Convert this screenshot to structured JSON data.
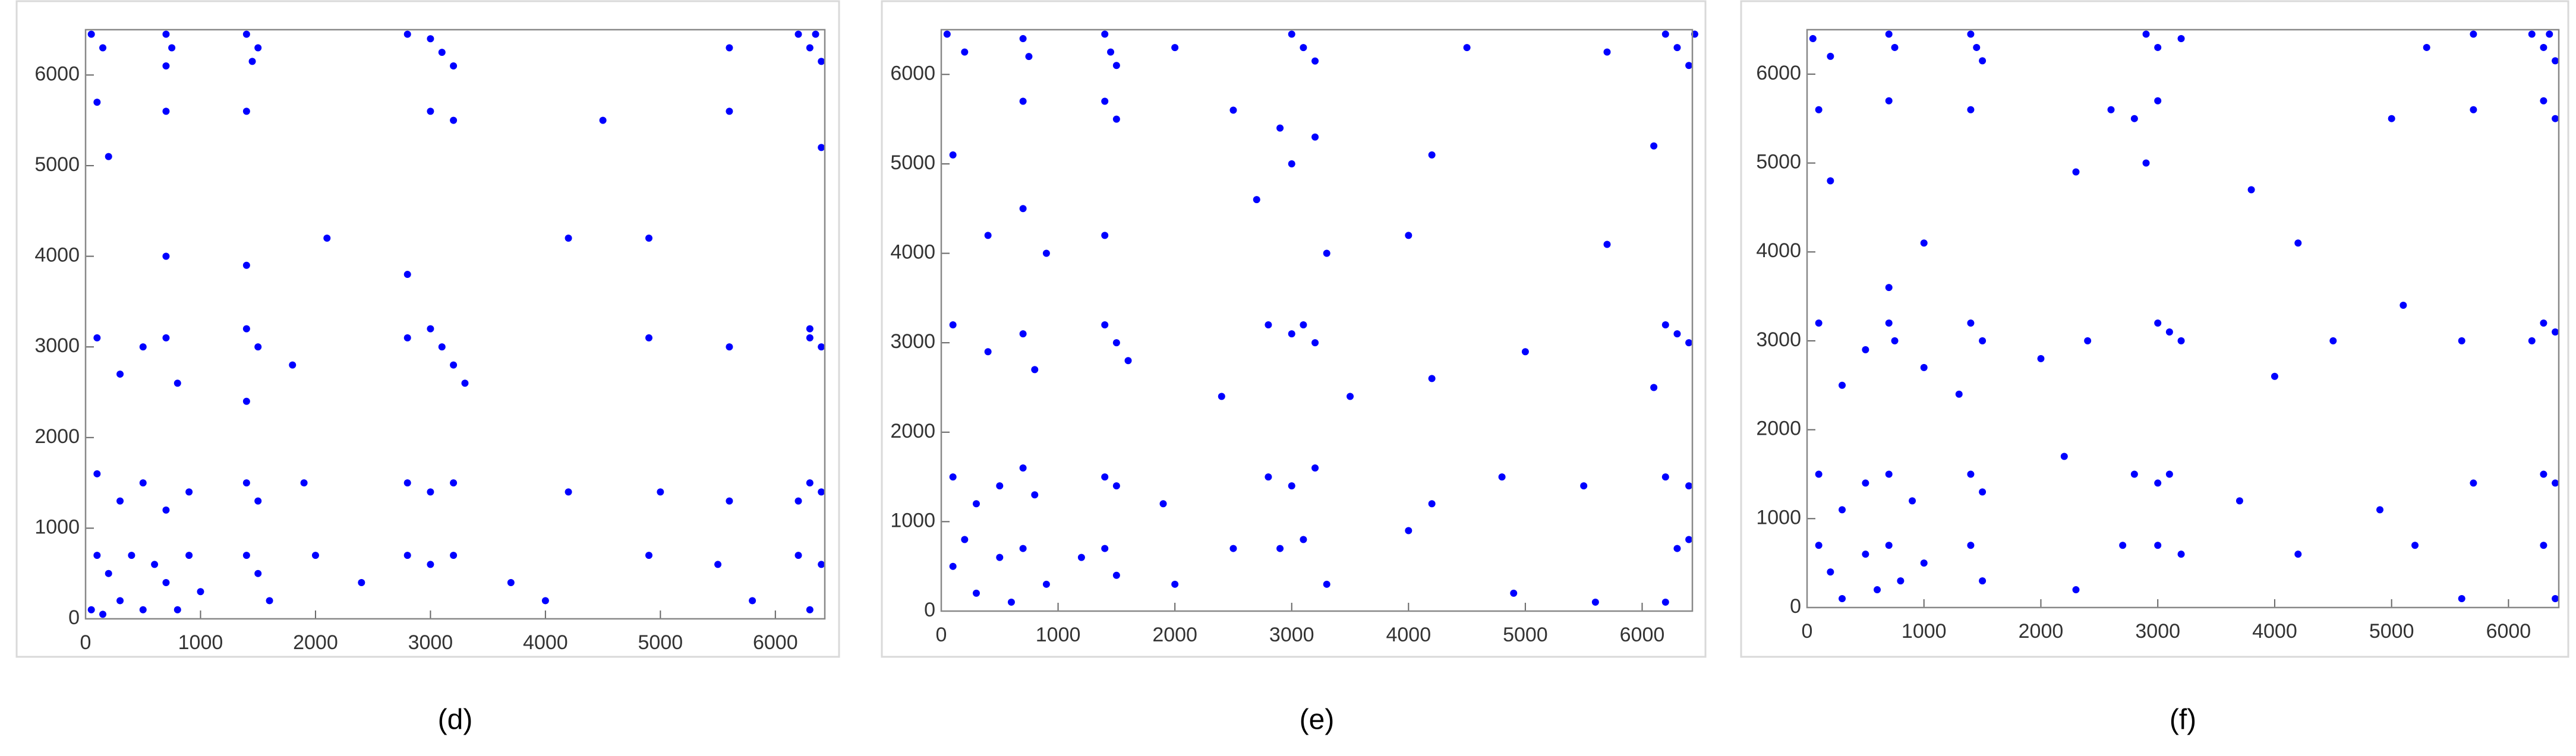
{
  "chart_data": [
    {
      "type": "scatter",
      "caption": "(d)",
      "color": "#0000ff",
      "xlim": [
        0,
        6430
      ],
      "ylim": [
        0,
        6500
      ],
      "xticks": [
        0,
        1000,
        2000,
        3000,
        4000,
        5000,
        6000
      ],
      "yticks": [
        0,
        1000,
        2000,
        3000,
        4000,
        5000,
        6000
      ],
      "x": [
        50,
        150,
        700,
        750,
        700,
        1400,
        1500,
        1450,
        2800,
        3000,
        3100,
        3200,
        5600,
        6200,
        6300,
        6400,
        6350,
        100,
        700,
        1400,
        3000,
        3200,
        5600,
        6400,
        200,
        4500,
        700,
        1400,
        2100,
        2800,
        4200,
        4900,
        100,
        300,
        500,
        700,
        800,
        1400,
        1500,
        1400,
        1800,
        2800,
        3000,
        3100,
        3200,
        3300,
        4900,
        5600,
        6300,
        6400,
        6300,
        100,
        300,
        500,
        700,
        900,
        1400,
        1500,
        1900,
        2800,
        3000,
        3200,
        4200,
        5000,
        5600,
        6300,
        6400,
        6200,
        100,
        200,
        300,
        400,
        500,
        600,
        700,
        800,
        900,
        1000,
        1400,
        1500,
        1600,
        2000,
        2400,
        2800,
        3000,
        3200,
        3700,
        4000,
        4900,
        5500,
        5800,
        6200,
        6400,
        6300,
        50,
        150
      ],
      "values": [
        6450,
        6300,
        6450,
        6300,
        6100,
        6450,
        6300,
        6150,
        6450,
        6400,
        6250,
        6100,
        6300,
        6450,
        6300,
        6150,
        6450,
        5700,
        5600,
        5600,
        5600,
        5500,
        5600,
        5200,
        5100,
        5500,
        4000,
        3900,
        4200,
        3800,
        4200,
        4200,
        3100,
        2700,
        3000,
        3100,
        2600,
        3200,
        3000,
        2400,
        2800,
        3100,
        3200,
        3000,
        2800,
        2600,
        3100,
        3000,
        3200,
        3000,
        3100,
        1600,
        1300,
        1500,
        1200,
        1400,
        1500,
        1300,
        1500,
        1500,
        1400,
        1500,
        1400,
        1400,
        1300,
        1500,
        1400,
        1300,
        700,
        500,
        200,
        700,
        100,
        600,
        400,
        100,
        700,
        300,
        700,
        500,
        200,
        700,
        400,
        700,
        600,
        700,
        400,
        200,
        700,
        600,
        200,
        700,
        600,
        100,
        100,
        50
      ]
    },
    {
      "type": "scatter",
      "caption": "(e)",
      "color": "#0000ff",
      "xlim": [
        0,
        6430
      ],
      "ylim": [
        0,
        6500
      ],
      "xticks": [
        0,
        1000,
        2000,
        3000,
        4000,
        5000,
        6000
      ],
      "yticks": [
        0,
        1000,
        2000,
        3000,
        4000,
        5000,
        6000
      ],
      "x": [
        50,
        200,
        700,
        750,
        1400,
        1450,
        1500,
        2000,
        3000,
        3100,
        3200,
        4500,
        5700,
        6200,
        6300,
        6400,
        6450,
        100,
        700,
        1400,
        1500,
        2500,
        2900,
        3200,
        3000,
        4200,
        6100,
        400,
        700,
        900,
        1400,
        2700,
        3300,
        4000,
        5700,
        100,
        400,
        700,
        800,
        1400,
        1500,
        1600,
        2400,
        2800,
        3000,
        3100,
        3200,
        3500,
        4200,
        5000,
        6200,
        6300,
        6400,
        6100,
        100,
        300,
        500,
        700,
        800,
        1400,
        1500,
        1900,
        2800,
        3000,
        3200,
        4200,
        4800,
        5500,
        6200,
        6400,
        100,
        200,
        300,
        500,
        600,
        700,
        900,
        1200,
        1400,
        1500,
        2000,
        2500,
        2900,
        3100,
        3300,
        4000,
        4900,
        5600,
        6300,
        6400,
        6200
      ],
      "values": [
        6450,
        6250,
        6400,
        6200,
        6450,
        6250,
        6100,
        6300,
        6450,
        6300,
        6150,
        6300,
        6250,
        6450,
        6300,
        6100,
        6450,
        5100,
        5700,
        5700,
        5500,
        5600,
        5400,
        5300,
        5000,
        5100,
        5200,
        4200,
        4500,
        4000,
        4200,
        4600,
        4000,
        4200,
        4100,
        3200,
        2900,
        3100,
        2700,
        3200,
        3000,
        2800,
        2400,
        3200,
        3100,
        3200,
        3000,
        2400,
        2600,
        2900,
        3200,
        3100,
        3000,
        2500,
        1500,
        1200,
        1400,
        1600,
        1300,
        1500,
        1400,
        1200,
        1500,
        1400,
        1600,
        1200,
        1500,
        1400,
        1500,
        1400,
        500,
        800,
        200,
        600,
        100,
        700,
        300,
        600,
        700,
        400,
        300,
        700,
        700,
        800,
        300,
        900,
        200,
        100,
        700,
        800,
        100
      ]
    },
    {
      "type": "scatter",
      "caption": "(f)",
      "color": "#0000ff",
      "xlim": [
        0,
        6430
      ],
      "ylim": [
        0,
        6500
      ],
      "xticks": [
        0,
        1000,
        2000,
        3000,
        4000,
        5000,
        6000
      ],
      "yticks": [
        0,
        1000,
        2000,
        3000,
        4000,
        5000,
        6000
      ],
      "x": [
        50,
        200,
        700,
        750,
        1400,
        1450,
        1500,
        2900,
        3000,
        3200,
        5300,
        5700,
        6200,
        6300,
        6400,
        6350,
        100,
        700,
        1400,
        2600,
        2800,
        3000,
        5000,
        5700,
        6300,
        6400,
        200,
        2300,
        2900,
        3800,
        4200,
        1000,
        700,
        100,
        300,
        500,
        700,
        750,
        1000,
        1400,
        1500,
        1300,
        2000,
        2400,
        3000,
        3100,
        3200,
        4000,
        4500,
        5100,
        5600,
        6300,
        6400,
        6200,
        100,
        300,
        500,
        700,
        900,
        1400,
        1500,
        2200,
        2800,
        3000,
        3100,
        3700,
        4900,
        5700,
        6300,
        6400,
        100,
        200,
        300,
        500,
        600,
        700,
        800,
        1000,
        1400,
        1500,
        2300,
        2700,
        3000,
        3200,
        4200,
        5200,
        5600,
        6300,
        6400
      ],
      "values": [
        6400,
        6200,
        6450,
        6300,
        6450,
        6300,
        6150,
        6450,
        6300,
        6400,
        6300,
        6450,
        6450,
        6300,
        6150,
        6450,
        5600,
        5700,
        5600,
        5600,
        5500,
        5700,
        5500,
        5600,
        5700,
        5500,
        4800,
        4900,
        5000,
        4700,
        4100,
        4100,
        3600,
        3200,
        2500,
        2900,
        3200,
        3000,
        2700,
        3200,
        3000,
        2400,
        2800,
        3000,
        3200,
        3100,
        3000,
        2600,
        3000,
        3400,
        3000,
        3200,
        3100,
        3000,
        1500,
        1100,
        1400,
        1500,
        1200,
        1500,
        1300,
        1700,
        1500,
        1400,
        1500,
        1200,
        1100,
        1400,
        1500,
        1400,
        700,
        400,
        100,
        600,
        200,
        700,
        300,
        500,
        700,
        300,
        200,
        700,
        700,
        600,
        600,
        700,
        100,
        700,
        100
      ]
    }
  ]
}
